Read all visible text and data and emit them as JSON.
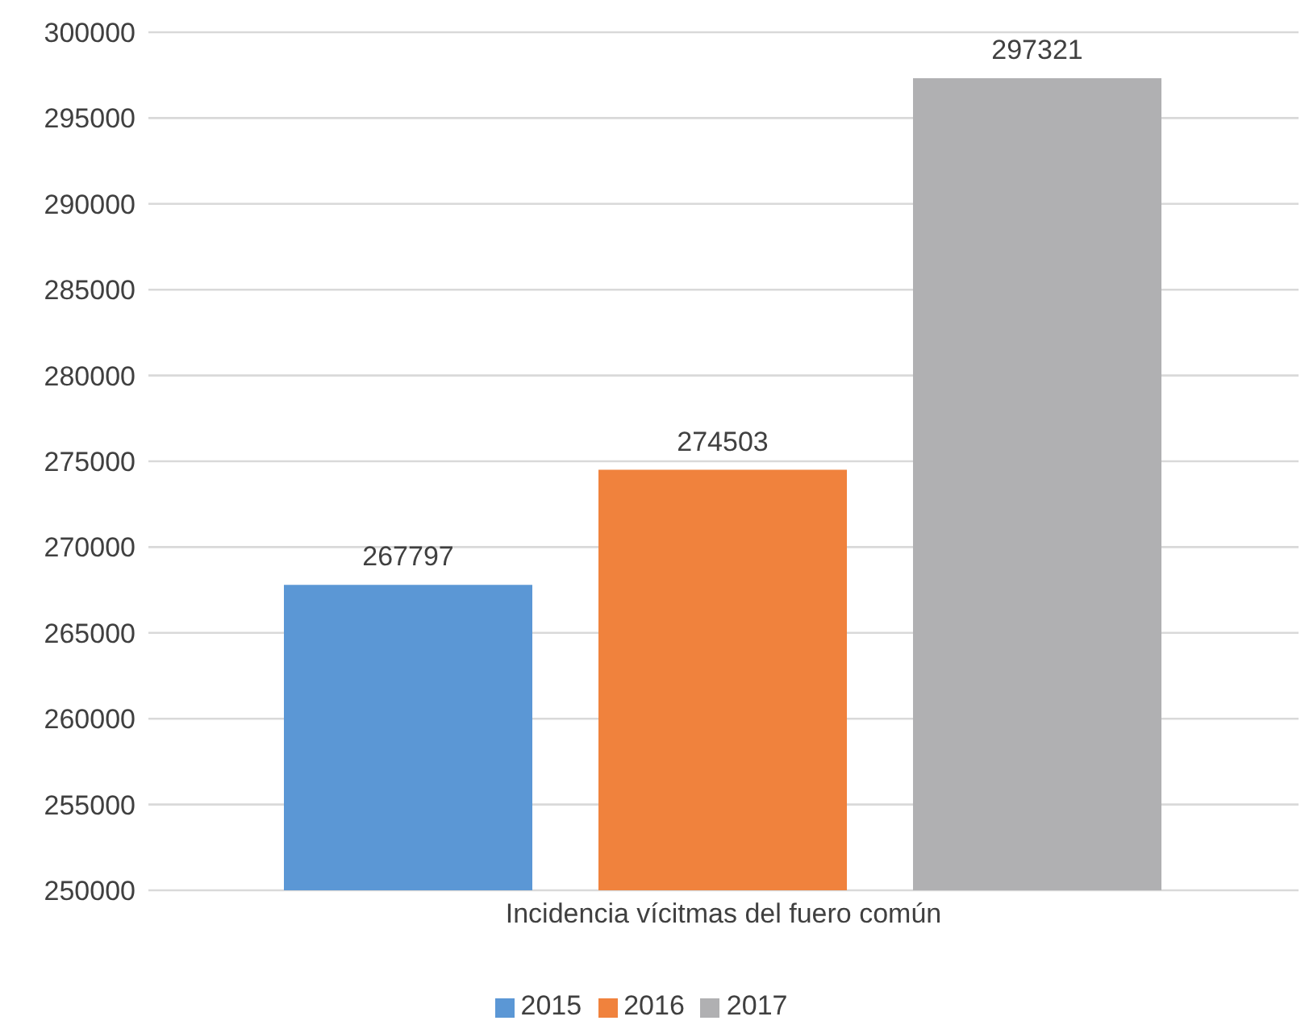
{
  "chart_data": {
    "type": "bar",
    "categories": [
      "Incidencia vícitmas del fuero común"
    ],
    "series": [
      {
        "name": "2015",
        "color": "#5b97d5",
        "values": [
          267797
        ]
      },
      {
        "name": "2016",
        "color": "#f0823d",
        "values": [
          274503
        ]
      },
      {
        "name": "2017",
        "color": "#b0b0b2",
        "values": [
          297321
        ]
      }
    ],
    "ylim": [
      250000,
      300000
    ],
    "yticks": [
      250000,
      255000,
      260000,
      265000,
      270000,
      275000,
      280000,
      285000,
      290000,
      295000,
      300000
    ],
    "grid": "y",
    "legend": "bottom",
    "data_labels": true
  }
}
